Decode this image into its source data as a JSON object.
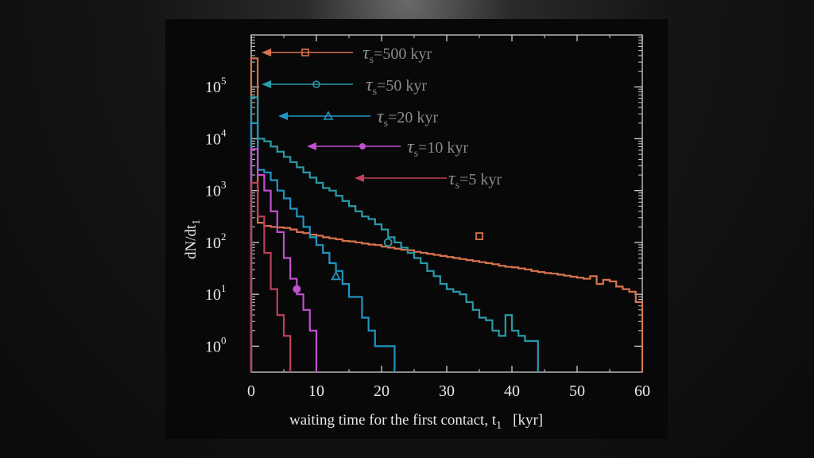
{
  "chart_data": {
    "type": "line",
    "title": "",
    "xlabel": "waiting time for the first contact, t",
    "xlabel_sub": "1",
    "xlabel_unit": "[kyr]",
    "ylabel": "dN/dt",
    "ylabel_sub": "1",
    "xlim": [
      0,
      60
    ],
    "ylim_log10": [
      -0.5,
      6.0
    ],
    "yscale": "log",
    "grid": false,
    "legend_placement": "inline-top",
    "x_ticks": [
      0,
      10,
      20,
      30,
      40,
      50,
      60
    ],
    "x_tick_labels": [
      "0",
      "10",
      "20",
      "30",
      "40",
      "50",
      "60"
    ],
    "y_ticks_log10": [
      0,
      1,
      2,
      3,
      4,
      5
    ],
    "y_tick_labels": [
      {
        "base": "10",
        "exp": "0"
      },
      {
        "base": "10",
        "exp": "1"
      },
      {
        "base": "10",
        "exp": "2"
      },
      {
        "base": "10",
        "exp": "3"
      },
      {
        "base": "10",
        "exp": "4"
      },
      {
        "base": "10",
        "exp": "5"
      }
    ],
    "series": [
      {
        "name_prefix": "τ",
        "name_sub": "s",
        "name_value": "=500 kyr",
        "color": "#d9734e",
        "marker": "square",
        "marker_x": 35,
        "marker_y_log10": 2.12,
        "initial_log10": 5.55,
        "log10_values": [
          2.38,
          2.32,
          2.3,
          2.29,
          2.28,
          2.25,
          2.2,
          2.18,
          2.15,
          2.13,
          2.1,
          2.08,
          2.06,
          2.03,
          2.02,
          2.0,
          1.98,
          1.96,
          1.95,
          1.92,
          1.9,
          1.88,
          1.86,
          1.85,
          1.82,
          1.8,
          1.78,
          1.76,
          1.74,
          1.72,
          1.7,
          1.68,
          1.66,
          1.64,
          1.62,
          1.6,
          1.58,
          1.55,
          1.53,
          1.52,
          1.5,
          1.48,
          1.45,
          1.43,
          1.41,
          1.4,
          1.38,
          1.36,
          1.34,
          1.32,
          1.3,
          1.35,
          1.2,
          1.28,
          1.25,
          1.15,
          1.1,
          1.05,
          0.85
        ]
      },
      {
        "name_prefix": "τ",
        "name_sub": "s",
        "name_value": "=50 kyr",
        "color": "#2a9aa8",
        "marker": "circle",
        "marker_x": 21,
        "marker_y_log10": 2.0,
        "initial_log10": 4.8,
        "log10_values": [
          4.0,
          3.95,
          3.85,
          3.75,
          3.65,
          3.55,
          3.45,
          3.35,
          3.25,
          3.15,
          3.05,
          3.0,
          2.9,
          2.8,
          2.7,
          2.6,
          2.5,
          2.45,
          2.35,
          2.25,
          2.1,
          2.0,
          1.9,
          1.8,
          1.7,
          1.6,
          1.45,
          1.35,
          1.2,
          1.1,
          1.05,
          1.0,
          0.85,
          0.7,
          0.55,
          0.5,
          0.3,
          0.2,
          0.6,
          0.3,
          0.2,
          0.1,
          0.1
        ]
      },
      {
        "name_prefix": "τ",
        "name_sub": "s",
        "name_value": "=20 kyr",
        "color": "#1f95c2",
        "marker": "triangle",
        "marker_x": 13,
        "marker_y_log10": 1.35,
        "initial_log10": 4.3,
        "log10_values": [
          3.4,
          3.35,
          3.2,
          3.0,
          2.85,
          2.65,
          2.5,
          2.3,
          2.1,
          1.95,
          1.8,
          1.6,
          1.45,
          1.2,
          0.95,
          0.95,
          0.55,
          0.3,
          0.0,
          0.0,
          0.0
        ]
      },
      {
        "name_prefix": "τ",
        "name_sub": "s",
        "name_value": "=10 kyr",
        "color": "#c24fd0",
        "marker": "filled-circle",
        "marker_x": 7,
        "marker_y_log10": 1.1,
        "initial_log10": 3.8,
        "log10_values": [
          3.3,
          3.0,
          2.6,
          2.2,
          1.7,
          1.3,
          1.0,
          0.7,
          0.3
        ]
      },
      {
        "name_prefix": "τ",
        "name_sub": "s",
        "name_value": "=5 kyr",
        "color": "#c0405c",
        "marker": "none",
        "initial_log10": 3.15,
        "log10_values": [
          2.5,
          1.8,
          1.1,
          0.6,
          0.2
        ]
      }
    ]
  }
}
